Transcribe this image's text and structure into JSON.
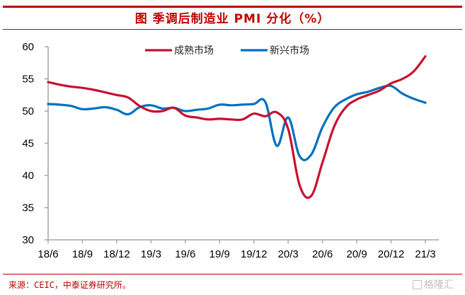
{
  "header": {
    "title": "图  季调后制造业 PMI 分化（%）"
  },
  "footer": {
    "source": "来源：CEIC，中泰证券研究所。",
    "watermark": "格隆汇"
  },
  "colors": {
    "accent": "#c00000",
    "series_mature": "#c8102e",
    "series_emerging": "#0070c0",
    "axis": "#a6a6a6"
  },
  "chart_data": {
    "type": "line",
    "title": "季调后制造业 PMI 分化（%）",
    "xlabel": "",
    "ylabel": "",
    "ylim": [
      30,
      60
    ],
    "yticks": [
      30,
      35,
      40,
      45,
      50,
      55,
      60
    ],
    "grid": false,
    "legend_position": "top-center",
    "x": [
      "18/6",
      "18/7",
      "18/8",
      "18/9",
      "18/10",
      "18/11",
      "18/12",
      "19/1",
      "19/2",
      "19/3",
      "19/4",
      "19/5",
      "19/6",
      "19/7",
      "19/8",
      "19/9",
      "19/10",
      "19/11",
      "19/12",
      "20/1",
      "20/2",
      "20/3",
      "20/4",
      "20/5",
      "20/6",
      "20/7",
      "20/8",
      "20/9",
      "20/10",
      "20/11",
      "20/12",
      "21/1",
      "21/2",
      "21/3"
    ],
    "xtick_labels": [
      "18/6",
      "18/9",
      "18/12",
      "19/3",
      "19/6",
      "19/9",
      "19/12",
      "20/3",
      "20/6",
      "20/9",
      "20/12",
      "21/3"
    ],
    "series": [
      {
        "name": "成熟市场",
        "values": [
          54.5,
          54.1,
          53.8,
          53.6,
          53.3,
          52.9,
          52.5,
          52.1,
          50.8,
          50.0,
          50.0,
          50.5,
          49.3,
          49.0,
          48.7,
          48.8,
          48.7,
          48.7,
          49.6,
          49.2,
          49.8,
          47.2,
          38.5,
          36.8,
          42.0,
          47.5,
          50.5,
          51.8,
          52.5,
          53.2,
          54.3,
          55.0,
          56.2,
          58.5
        ]
      },
      {
        "name": "新兴市场",
        "values": [
          51.1,
          51.0,
          50.8,
          50.3,
          50.4,
          50.6,
          50.2,
          49.5,
          50.6,
          50.9,
          50.4,
          50.5,
          50.0,
          50.2,
          50.4,
          51.0,
          50.9,
          51.0,
          51.1,
          51.4,
          44.6,
          49.0,
          43.0,
          43.2,
          47.5,
          50.5,
          51.8,
          52.6,
          53.0,
          53.6,
          53.9,
          52.7,
          51.9,
          51.3
        ]
      }
    ]
  }
}
